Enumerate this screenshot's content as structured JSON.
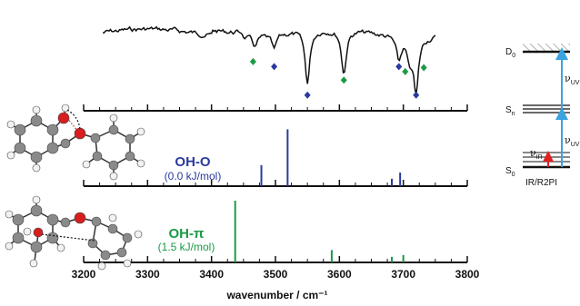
{
  "chart_data": {
    "type": "line",
    "xlabel": "wavenumber  / cm⁻¹",
    "xlim": [
      3200,
      3800
    ],
    "ticks": [
      "3200",
      "3300",
      "3400",
      "3500",
      "3600",
      "3700",
      "3800"
    ],
    "tick_values": [
      3200,
      3300,
      3400,
      3500,
      3600,
      3700,
      3800
    ],
    "experimental_spectrum": {
      "x_range": [
        3230,
        3750
      ],
      "dips": [
        {
          "x": 3550,
          "depth": 1.0
        },
        {
          "x": 3607,
          "depth": 0.82
        },
        {
          "x": 3720,
          "depth": 1.05
        },
        {
          "x": 3710,
          "depth": 0.45
        },
        {
          "x": 3693,
          "depth": 0.45
        },
        {
          "x": 3498,
          "depth": 0.3
        },
        {
          "x": 3468,
          "depth": 0.2
        }
      ],
      "markers": [
        {
          "x": 3465,
          "color": "green",
          "level": 0.58
        },
        {
          "x": 3498,
          "color": "blue",
          "level": 0.68
        },
        {
          "x": 3550,
          "color": "blue",
          "level": 1.25
        },
        {
          "x": 3607,
          "color": "green",
          "level": 0.95
        },
        {
          "x": 3693,
          "color": "blue",
          "level": 0.68
        },
        {
          "x": 3703,
          "color": "green",
          "level": 0.78
        },
        {
          "x": 3720,
          "color": "blue",
          "level": 1.25
        },
        {
          "x": 3732,
          "color": "green",
          "level": 0.7
        }
      ]
    },
    "conformers": [
      {
        "name": "OH-O",
        "energy": "(0.0 kJ/mol)",
        "color": "#2b3a9e",
        "sticks": [
          {
            "x": 3478,
            "intensity": 0.34
          },
          {
            "x": 3519,
            "intensity": 0.92
          },
          {
            "x": 3682,
            "intensity": 0.12
          },
          {
            "x": 3695,
            "intensity": 0.22
          }
        ]
      },
      {
        "name": "OH-π",
        "energy": "(1.5 kJ/mol)",
        "color": "#1a9a46",
        "sticks": [
          {
            "x": 3437,
            "intensity": 1.0
          },
          {
            "x": 3588,
            "intensity": 0.2
          },
          {
            "x": 3682,
            "intensity": 0.09
          },
          {
            "x": 3700,
            "intensity": 0.12
          }
        ]
      }
    ]
  },
  "colors": {
    "blue": "#2b3a9e",
    "green": "#1a9a46",
    "laser_uv": "#3aa3e0",
    "laser_ir": "#e02020"
  },
  "energy_diagram": {
    "d0_label": "D",
    "d0_sub": "0",
    "sn_label": "S",
    "sn_sub": "n",
    "s0_label": "S",
    "s0_sub": "0",
    "nu": "ν",
    "uv_sub": "UV",
    "ir_sub": "IR",
    "scheme_label": "IR/R2PI"
  }
}
